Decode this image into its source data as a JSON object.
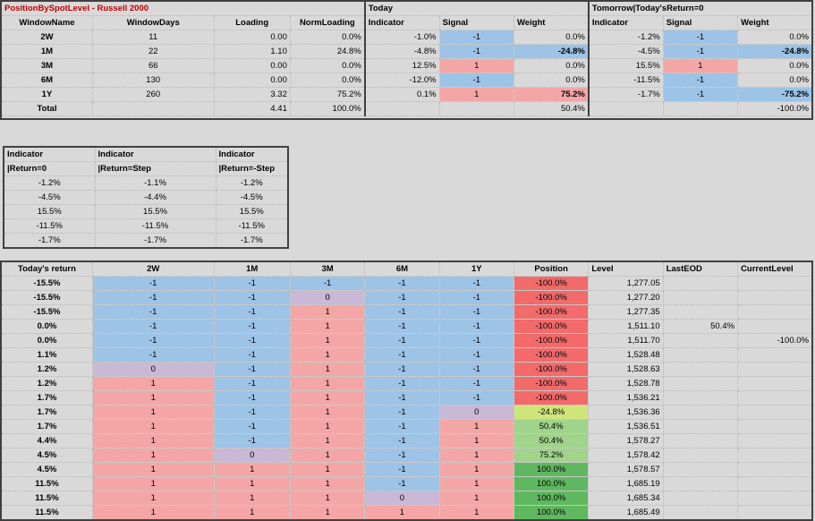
{
  "top": {
    "title": "PositionBySpotLevel - Russell 2000",
    "today_label": "Today",
    "tomorrow_label": "Tomorrow|Today'sReturn=0",
    "columns": [
      "WindowName",
      "WindowDays",
      "Loading",
      "NormLoading",
      "Indicator",
      "Signal",
      "Weight",
      "Indicator",
      "Signal",
      "Weight"
    ],
    "rows": [
      {
        "name": "2W",
        "days": "11",
        "loading": "0.00",
        "norm": "0.0%",
        "ind": "-1.0%",
        "sig": "-1",
        "w": "0.0%",
        "tind": "-1.2%",
        "tsig": "-1",
        "tw": "0.0%"
      },
      {
        "name": "1M",
        "days": "22",
        "loading": "1.10",
        "norm": "24.8%",
        "ind": "-4.8%",
        "sig": "-1",
        "w": "-24.8%",
        "tind": "-4.5%",
        "tsig": "-1",
        "tw": "-24.8%"
      },
      {
        "name": "3M",
        "days": "66",
        "loading": "0.00",
        "norm": "0.0%",
        "ind": "12.5%",
        "sig": "1",
        "w": "0.0%",
        "tind": "15.5%",
        "tsig": "1",
        "tw": "0.0%"
      },
      {
        "name": "6M",
        "days": "130",
        "loading": "0.00",
        "norm": "0.0%",
        "ind": "-12.0%",
        "sig": "-1",
        "w": "0.0%",
        "tind": "-11.5%",
        "tsig": "-1",
        "tw": "0.0%"
      },
      {
        "name": "1Y",
        "days": "260",
        "loading": "3.32",
        "norm": "75.2%",
        "ind": "0.1%",
        "sig": "1",
        "w": "75.2%",
        "tind": "-1.7%",
        "tsig": "-1",
        "tw": "-75.2%"
      }
    ],
    "total": {
      "label": "Total",
      "loading": "4.41",
      "norm": "100.0%",
      "w": "50.4%",
      "tw": "-100.0%"
    }
  },
  "mini": {
    "headers_line1": [
      "Indicator",
      "Indicator",
      "Indicator"
    ],
    "headers_line2": [
      "|Return=0",
      "|Return=Step",
      "|Return=-Step"
    ],
    "rows": [
      [
        "-1.2%",
        "-1.1%",
        "-1.2%"
      ],
      [
        "-4.5%",
        "-4.4%",
        "-4.5%"
      ],
      [
        "15.5%",
        "15.5%",
        "15.5%"
      ],
      [
        "-11.5%",
        "-11.5%",
        "-11.5%"
      ],
      [
        "-1.7%",
        "-1.7%",
        "-1.7%"
      ]
    ]
  },
  "bottom": {
    "columns": [
      "Today's return",
      "2W",
      "1M",
      "3M",
      "6M",
      "1Y",
      "Position",
      "Level",
      "LastEOD",
      "CurrentLevel"
    ],
    "rows": [
      {
        "ret": "-15.5%",
        "s": [
          "-1",
          "-1",
          "-1",
          "-1",
          "-1"
        ],
        "pos": "-100.0%",
        "level": "1,277.05",
        "eod": "",
        "cur": ""
      },
      {
        "ret": "-15.5%",
        "s": [
          "-1",
          "-1",
          "0",
          "-1",
          "-1"
        ],
        "pos": "-100.0%",
        "level": "1,277.20",
        "eod": "",
        "cur": ""
      },
      {
        "ret": "-15.5%",
        "s": [
          "-1",
          "-1",
          "1",
          "-1",
          "-1"
        ],
        "pos": "-100.0%",
        "level": "1,277.35",
        "eod": "",
        "cur": ""
      },
      {
        "ret": "0.0%",
        "s": [
          "-1",
          "-1",
          "1",
          "-1",
          "-1"
        ],
        "pos": "-100.0%",
        "level": "1,511.10",
        "eod": "50.4%",
        "cur": ""
      },
      {
        "ret": "0.0%",
        "s": [
          "-1",
          "-1",
          "1",
          "-1",
          "-1"
        ],
        "pos": "-100.0%",
        "level": "1,511.70",
        "eod": "",
        "cur": "-100.0%"
      },
      {
        "ret": "1.1%",
        "s": [
          "-1",
          "-1",
          "1",
          "-1",
          "-1"
        ],
        "pos": "-100.0%",
        "level": "1,528.48",
        "eod": "",
        "cur": ""
      },
      {
        "ret": "1.2%",
        "s": [
          "0",
          "-1",
          "1",
          "-1",
          "-1"
        ],
        "pos": "-100.0%",
        "level": "1,528.63",
        "eod": "",
        "cur": ""
      },
      {
        "ret": "1.2%",
        "s": [
          "1",
          "-1",
          "1",
          "-1",
          "-1"
        ],
        "pos": "-100.0%",
        "level": "1,528.78",
        "eod": "",
        "cur": ""
      },
      {
        "ret": "1.7%",
        "s": [
          "1",
          "-1",
          "1",
          "-1",
          "-1"
        ],
        "pos": "-100.0%",
        "level": "1,536.21",
        "eod": "",
        "cur": ""
      },
      {
        "ret": "1.7%",
        "s": [
          "1",
          "-1",
          "1",
          "-1",
          "0"
        ],
        "pos": "-24.8%",
        "level": "1,536.36",
        "eod": "",
        "cur": ""
      },
      {
        "ret": "1.7%",
        "s": [
          "1",
          "-1",
          "1",
          "-1",
          "1"
        ],
        "pos": "50.4%",
        "level": "1,536.51",
        "eod": "",
        "cur": ""
      },
      {
        "ret": "4.4%",
        "s": [
          "1",
          "-1",
          "1",
          "-1",
          "1"
        ],
        "pos": "50.4%",
        "level": "1,578.27",
        "eod": "",
        "cur": ""
      },
      {
        "ret": "4.5%",
        "s": [
          "1",
          "0",
          "1",
          "-1",
          "1"
        ],
        "pos": "75.2%",
        "level": "1,578.42",
        "eod": "",
        "cur": ""
      },
      {
        "ret": "4.5%",
        "s": [
          "1",
          "1",
          "1",
          "-1",
          "1"
        ],
        "pos": "100.0%",
        "level": "1,578.57",
        "eod": "",
        "cur": ""
      },
      {
        "ret": "11.5%",
        "s": [
          "1",
          "1",
          "1",
          "-1",
          "1"
        ],
        "pos": "100.0%",
        "level": "1,685.19",
        "eod": "",
        "cur": ""
      },
      {
        "ret": "11.5%",
        "s": [
          "1",
          "1",
          "1",
          "0",
          "1"
        ],
        "pos": "100.0%",
        "level": "1,685.34",
        "eod": "",
        "cur": ""
      },
      {
        "ret": "11.5%",
        "s": [
          "1",
          "1",
          "1",
          "1",
          "1"
        ],
        "pos": "100.0%",
        "level": "1,685.49",
        "eod": "",
        "cur": ""
      }
    ]
  },
  "colors": {
    "negative": "#9dc3e6",
    "positive": "#f4a6a6",
    "neutral": "#c9b8d6",
    "pos_neg": "#f26a6a",
    "pos_mid": "#cfe57a",
    "pos_half": "#9fd48a",
    "pos_full": "#5fb85f"
  }
}
